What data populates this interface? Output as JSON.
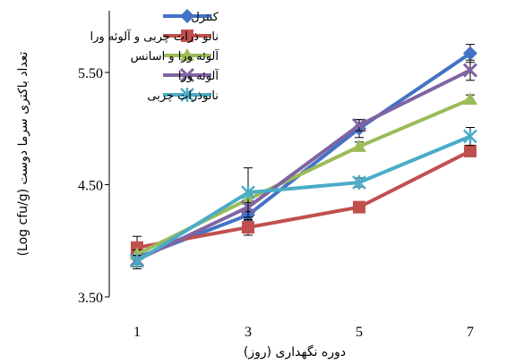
{
  "chart_data": {
    "type": "line",
    "x": [
      1,
      3,
      5,
      7
    ],
    "xticks": [
      "1",
      "3",
      "5",
      "7"
    ],
    "xlim": [
      0.5,
      7.5
    ],
    "ylim": [
      3.5,
      6.05
    ],
    "yticks": [
      "3.50",
      "4.50",
      "5.50"
    ],
    "ytick_values": [
      3.5,
      4.5,
      5.5
    ],
    "xlabel": "دوره نگهداری (روز)",
    "ylabel": "تعداد باکتری سرما دوست (Log cfu/g)",
    "legend_position": "top-left",
    "grid": false,
    "series": [
      {
        "name": "کنترل",
        "color": "#4472C4",
        "marker": "diamond",
        "values": [
          3.85,
          4.23,
          5.0,
          5.67
        ],
        "errors": [
          0.1,
          0.05,
          0.08,
          0.08
        ]
      },
      {
        "name": "نانو ذرات چربی و آلوئه ورا",
        "color": "#C0504D",
        "marker": "square",
        "values": [
          3.94,
          4.12,
          4.3,
          4.8
        ],
        "errors": [
          0.1,
          0.07,
          0.04,
          0.05
        ]
      },
      {
        "name": "آلوئه ورا و اسانس",
        "color": "#9BBB59",
        "marker": "triangle",
        "values": [
          3.88,
          4.37,
          4.84,
          5.26
        ],
        "errors": [
          0.04,
          0.04,
          0.04,
          0.04
        ]
      },
      {
        "name": "آلوئه ورا",
        "color": "#8064A2",
        "marker": "x",
        "values": [
          3.83,
          4.3,
          5.03,
          5.52
        ],
        "errors": [
          0.04,
          0.04,
          0.05,
          0.09
        ]
      },
      {
        "name": "نانوذرات چربی",
        "color": "#4BACC6",
        "marker": "star",
        "values": [
          3.82,
          4.43,
          4.52,
          4.93
        ],
        "errors": [
          0.05,
          0.22,
          0.04,
          0.08
        ]
      }
    ]
  }
}
